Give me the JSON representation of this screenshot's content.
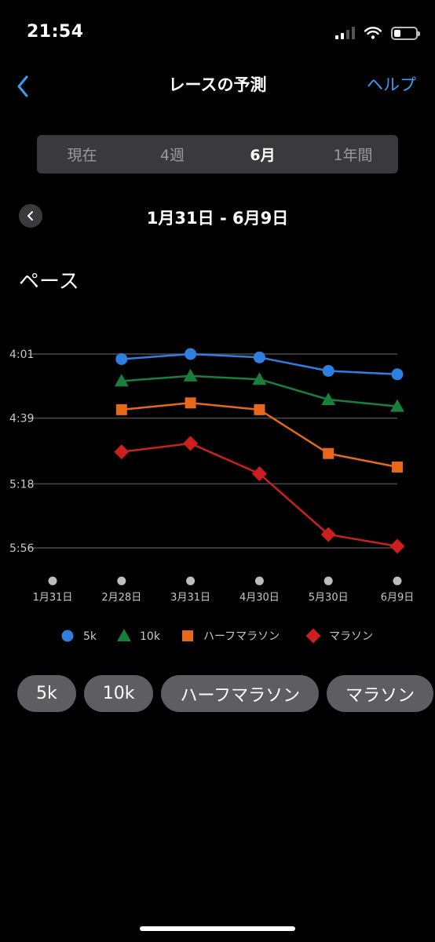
{
  "status": {
    "time": "21:54"
  },
  "nav": {
    "title": "レースの予測",
    "help": "ヘルプ",
    "back_icon": "chevron-left-icon"
  },
  "tabs": [
    {
      "label": "現在",
      "active": false
    },
    {
      "label": "4週",
      "active": false
    },
    {
      "label": "6月",
      "active": true
    },
    {
      "label": "1年間",
      "active": false
    }
  ],
  "period": {
    "label": "1月31日 - 6月9日",
    "prev_icon": "chevron-left-icon"
  },
  "section": {
    "title": "ペース"
  },
  "chart_data": {
    "type": "line",
    "title": "",
    "xlabel": "",
    "ylabel": "",
    "y_axis_inverted": true,
    "y_ticks": [
      "4:01",
      "4:39",
      "5:18",
      "5:56"
    ],
    "y_tick_seconds": [
      241,
      279,
      318,
      356
    ],
    "ylim_seconds": [
      241,
      356
    ],
    "categories": [
      "1月31日",
      "2月28日",
      "3月31日",
      "4月30日",
      "5月30日",
      "6月9日"
    ],
    "grid": true,
    "legend_position": "bottom",
    "series": [
      {
        "name": "5k",
        "color": "#2f7fe0",
        "marker": "circle",
        "values": [
          null,
          "4:04",
          "4:01",
          "4:03",
          "4:11",
          "4:13"
        ]
      },
      {
        "name": "10k",
        "color": "#1a7f3a",
        "marker": "triangle",
        "values": [
          null,
          "4:17",
          "4:14",
          "4:16",
          "4:28",
          "4:32"
        ]
      },
      {
        "name": "ハーフマラソン",
        "color": "#e8681a",
        "marker": "square",
        "values": [
          null,
          "4:34",
          "4:30",
          "4:34",
          "5:00",
          "5:08"
        ]
      },
      {
        "name": "マラソン",
        "color": "#cc1f1f",
        "marker": "diamond",
        "values": [
          null,
          "4:59",
          "4:54",
          "5:12",
          "5:48",
          "5:55"
        ]
      }
    ]
  },
  "filters": [
    "5k",
    "10k",
    "ハーフマラソン",
    "マラソン"
  ]
}
